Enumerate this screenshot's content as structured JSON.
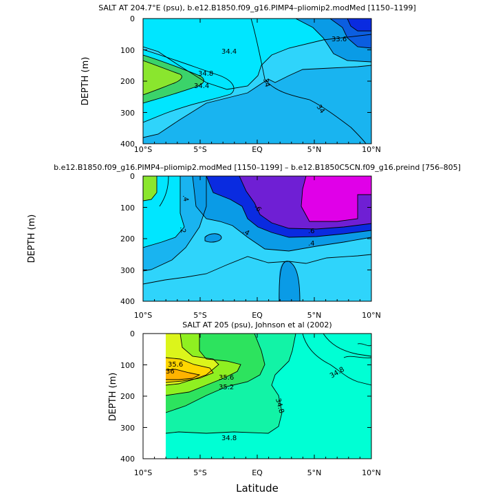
{
  "figure": {
    "xlabel": "Latitude"
  },
  "chart_data": [
    {
      "type": "contour",
      "title": "SALT AT 204.7°E (psu), b.e12.B1850.f09_g16.PIMP4–pliomip2.modMed [1150–1199]",
      "ylabel": "DEPTH (m)",
      "xlim": [
        -10,
        10
      ],
      "ylim": [
        400,
        0
      ],
      "x_ticks": [
        "10°S",
        "5°S",
        "EQ",
        "5°N",
        "10°N"
      ],
      "y_ticks": [
        "0",
        "100",
        "200",
        "300",
        "400"
      ],
      "levels_labeled": [
        "34.4",
        "34.8",
        "34.4",
        "34",
        "34",
        "33.6"
      ],
      "colors": [
        "#19b4f0",
        "#00e6ff",
        "#2fd4fb",
        "#8ae62e",
        "#3bd36a",
        "#0a9be6",
        "#0b5ee0",
        "#0a2be0"
      ]
    },
    {
      "type": "contour",
      "title": "b.e12.B1850.f09_g16.PIMP4–pliomip2.modMed [1150–1199] – b.e12.B1850C5CN.f09_g16.preind [756–805]",
      "ylabel": "DEPTH (m)",
      "xlim": [
        -10,
        10
      ],
      "ylim": [
        400,
        0
      ],
      "x_ticks": [
        "10°S",
        "5°S",
        "EQ",
        "5°N",
        "10°N"
      ],
      "y_ticks": [
        "0",
        "100",
        "200",
        "300",
        "400"
      ],
      "levels_labeled": [
        ".4",
        ".2",
        ".4",
        ".6",
        ".6",
        ".4"
      ],
      "colors": [
        "#2fd4fb",
        "#19b4f0",
        "#00e6ff",
        "#0a9be6",
        "#0a2be0",
        "#6f1fd4",
        "#e000e8",
        "#8ae62e"
      ]
    },
    {
      "type": "contour",
      "title": "SALT AT 205 (psu), Johnson et al (2002)",
      "ylabel": "DEPTH (m)",
      "xlim": [
        -10,
        10
      ],
      "ylim": [
        400,
        0
      ],
      "data_xlim": [
        -8,
        10
      ],
      "x_ticks": [
        "10°S",
        "5°S",
        "EQ",
        "5°N",
        "10°N"
      ],
      "y_ticks": [
        "0",
        "100",
        "200",
        "300",
        "400"
      ],
      "levels_labeled": [
        "35.6",
        "36",
        "35.6",
        "35.2",
        "34.8",
        "34.8",
        "34.8"
      ],
      "colors": [
        "#00ffd4",
        "#12f3a6",
        "#2de35e",
        "#8ff021",
        "#dcf51b",
        "#ffd600",
        "#ffb300",
        "#f7e839"
      ]
    }
  ]
}
